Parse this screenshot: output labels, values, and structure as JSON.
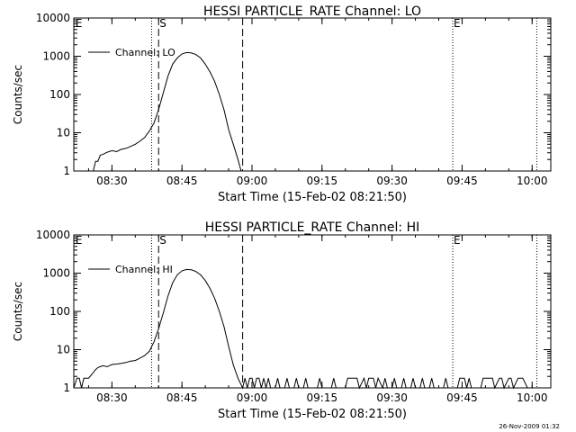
{
  "chart_data": [
    {
      "type": "line",
      "title": "HESSI PARTICLE_RATE Channel: LO",
      "xlabel": "Start Time (15-Feb-02 08:21:50)",
      "ylabel": "Counts/sec",
      "y_scale": "log",
      "ylim": [
        1,
        10000
      ],
      "xlim": [
        "08:21:50",
        "10:04:00"
      ],
      "x_ticks": [
        "08:30",
        "08:45",
        "09:00",
        "09:15",
        "09:30",
        "09:45",
        "10:00"
      ],
      "y_ticks": [
        "1",
        "10",
        "100",
        "1000",
        "10000"
      ],
      "legend": {
        "entries": [
          "Channel: LO"
        ],
        "position": "top-left"
      },
      "markers": {
        "dotted": [
          "08:38:30",
          "09:43:00",
          "10:01:00"
        ],
        "dashed": [
          "08:40:00",
          "08:58:00"
        ],
        "labels": [
          {
            "text": "E",
            "time": "08:22:00"
          },
          {
            "text": "S",
            "time": "08:40:00"
          },
          {
            "text": "E",
            "time": "09:43:00"
          }
        ]
      },
      "series": [
        {
          "name": "Channel: LO",
          "x": [
            "08:25:00",
            "08:26:00",
            "08:26:30",
            "08:27:00",
            "08:27:30",
            "08:28:00",
            "08:29:00",
            "08:30:00",
            "08:31:00",
            "08:32:00",
            "08:33:00",
            "08:34:00",
            "08:35:00",
            "08:36:00",
            "08:37:00",
            "08:38:00",
            "08:39:00",
            "08:40:00",
            "08:41:00",
            "08:42:00",
            "08:43:00",
            "08:44:00",
            "08:45:00",
            "08:46:00",
            "08:47:00",
            "08:48:00",
            "08:49:00",
            "08:50:00",
            "08:51:00",
            "08:52:00",
            "08:53:00",
            "08:54:00",
            "08:55:00",
            "08:56:00",
            "08:57:00",
            "08:57:40"
          ],
          "values": [
            1,
            1,
            1.8,
            1.8,
            2.6,
            2.7,
            3.1,
            3.4,
            3.2,
            3.7,
            3.9,
            4.4,
            5,
            6,
            7.5,
            11,
            18,
            40,
            110,
            300,
            620,
            900,
            1150,
            1250,
            1220,
            1100,
            900,
            620,
            390,
            220,
            100,
            40,
            12,
            5,
            2,
            1
          ]
        }
      ]
    },
    {
      "type": "line",
      "title": "HESSI PARTICLE_RATE Channel: HI",
      "xlabel": "Start Time (15-Feb-02 08:21:50)",
      "ylabel": "Counts/sec",
      "y_scale": "log",
      "ylim": [
        1,
        10000
      ],
      "xlim": [
        "08:21:50",
        "10:04:00"
      ],
      "x_ticks": [
        "08:30",
        "08:45",
        "09:00",
        "09:15",
        "09:30",
        "09:45",
        "10:00"
      ],
      "y_ticks": [
        "1",
        "10",
        "100",
        "1000",
        "10000"
      ],
      "legend": {
        "entries": [
          "Channel: HI"
        ],
        "position": "top-left"
      },
      "markers": {
        "dotted": [
          "08:38:30",
          "09:43:00",
          "10:01:00"
        ],
        "dashed": [
          "08:40:00",
          "08:58:00"
        ],
        "labels": [
          {
            "text": "E",
            "time": "08:22:00"
          },
          {
            "text": "S",
            "time": "08:40:00"
          },
          {
            "text": "E",
            "time": "09:43:00"
          }
        ]
      },
      "series": [
        {
          "name": "Channel: HI",
          "x": [
            "08:21:50",
            "08:22:30",
            "08:23:00",
            "08:23:30",
            "08:24:00",
            "08:24:30",
            "08:25:00",
            "08:26:00",
            "08:26:30",
            "08:27:00",
            "08:28:00",
            "08:29:00",
            "08:30:00",
            "08:31:00",
            "08:32:00",
            "08:33:00",
            "08:34:00",
            "08:35:00",
            "08:36:00",
            "08:37:00",
            "08:38:00",
            "08:39:00",
            "08:40:00",
            "08:41:00",
            "08:42:00",
            "08:43:00",
            "08:44:00",
            "08:45:00",
            "08:46:00",
            "08:47:00",
            "08:48:00",
            "08:49:00",
            "08:50:00",
            "08:51:00",
            "08:52:00",
            "08:53:00",
            "08:54:00",
            "08:55:00",
            "08:56:00",
            "08:57:00",
            "08:58:00",
            "08:58:30",
            "08:59:00",
            "08:59:30",
            "09:00:00",
            "09:00:30",
            "09:01:00",
            "09:01:30",
            "09:02:00",
            "09:02:30",
            "09:03:00",
            "09:03:30",
            "09:04:00",
            "09:05:00",
            "09:05:30",
            "09:06:00",
            "09:07:00",
            "09:07:30",
            "09:08:00",
            "09:09:00",
            "09:09:30",
            "09:10:00",
            "09:11:00",
            "09:11:30",
            "09:12:00",
            "09:14:00",
            "09:14:30",
            "09:15:00",
            "09:17:00",
            "09:17:30",
            "09:18:00",
            "09:20:00",
            "09:20:30",
            "09:21:00",
            "09:22:00",
            "09:22:30",
            "09:23:00",
            "09:24:00",
            "09:24:30",
            "09:25:00",
            "09:26:00",
            "09:26:30",
            "09:27:00",
            "09:28:00",
            "09:28:30",
            "09:29:00",
            "09:30:00",
            "09:30:30",
            "09:31:00",
            "09:32:00",
            "09:32:30",
            "09:33:00",
            "09:34:00",
            "09:34:30",
            "09:35:00",
            "09:36:00",
            "09:36:30",
            "09:37:00",
            "09:38:00",
            "09:38:30",
            "09:39:00",
            "09:41:00",
            "09:41:30",
            "09:42:00",
            "09:44:00",
            "09:44:30",
            "09:45:00",
            "09:45:30",
            "09:46:00",
            "09:46:30",
            "09:47:00",
            "09:49:00",
            "09:49:30",
            "09:50:00",
            "09:51:00",
            "09:51:30",
            "09:52:00",
            "09:53:00",
            "09:53:30",
            "09:54:00",
            "09:55:00",
            "09:55:30",
            "09:56:00",
            "09:57:00",
            "09:57:30",
            "09:58:00",
            "09:59:00",
            "10:00:00"
          ],
          "values": [
            1,
            1.8,
            1.8,
            1,
            1.8,
            1.8,
            1.8,
            2.5,
            3,
            3.4,
            3.8,
            3.6,
            4.1,
            4.2,
            4.4,
            4.6,
            5,
            5.2,
            6,
            7,
            9,
            16,
            35,
            90,
            250,
            560,
            900,
            1150,
            1250,
            1220,
            1100,
            900,
            640,
            400,
            220,
            100,
            40,
            12,
            4,
            1.8,
            1,
            1.8,
            1,
            1.8,
            1.8,
            1,
            1.8,
            1.8,
            1,
            1.8,
            1,
            1.8,
            1,
            1,
            1.8,
            1,
            1,
            1.8,
            1,
            1,
            1.8,
            1,
            1,
            1.8,
            1,
            1,
            1.8,
            1,
            1,
            1.8,
            1,
            1,
            1.8,
            1.8,
            1.8,
            1.8,
            1,
            1.8,
            1,
            1.8,
            1.8,
            1,
            1.8,
            1,
            1.8,
            1,
            1,
            1.8,
            1,
            1,
            1.8,
            1,
            1,
            1.8,
            1,
            1,
            1.8,
            1,
            1,
            1.8,
            1,
            1,
            1.8,
            1,
            1,
            1.8,
            1.8,
            1.8,
            1,
            1.8,
            1,
            1,
            1.8,
            1.8,
            1.8,
            1.8,
            1,
            1.8,
            1.8,
            1,
            1.8,
            1.8,
            1,
            1.8,
            1.8,
            1.8,
            1,
            1
          ]
        }
      ]
    }
  ],
  "footer": {
    "timestamp": "26-Nov-2009 01:32"
  }
}
